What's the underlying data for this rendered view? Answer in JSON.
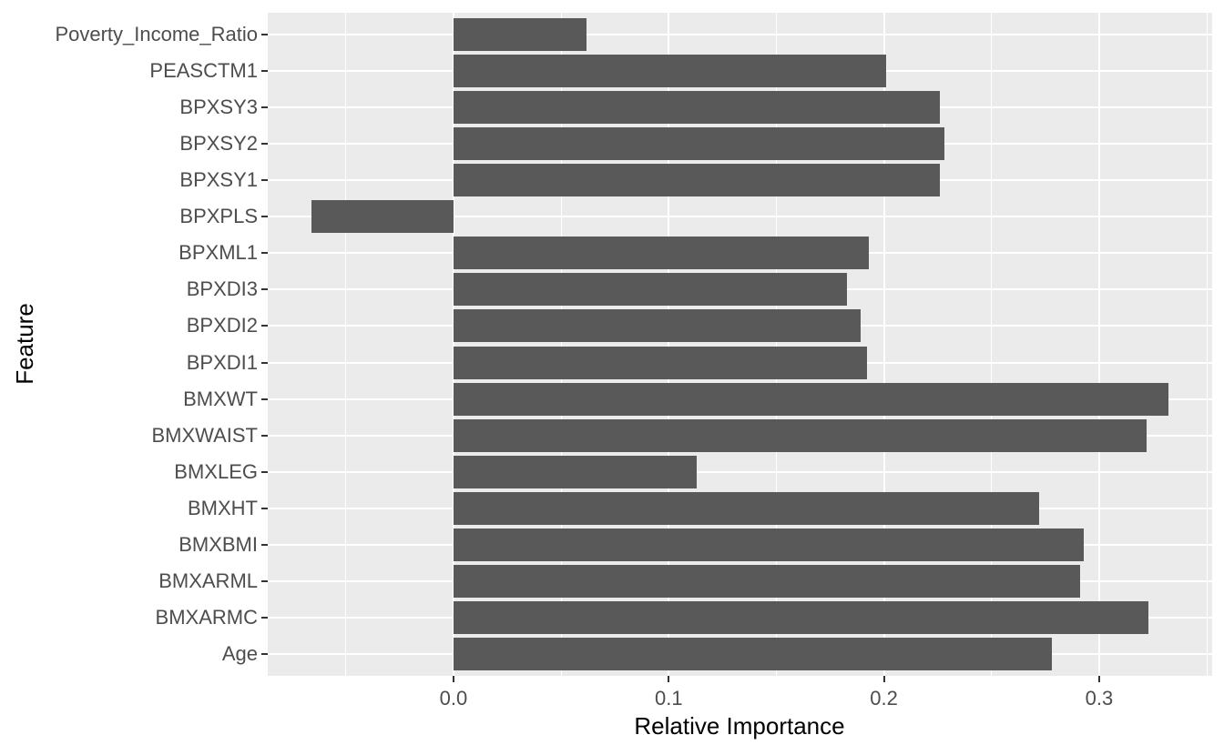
{
  "chart_data": {
    "type": "bar",
    "orientation": "horizontal",
    "title": "",
    "xlabel": "Relative Importance",
    "ylabel": "Feature",
    "categories": [
      "Poverty_Income_Ratio",
      "PEASCTM1",
      "BPXSY3",
      "BPXSY2",
      "BPXSY1",
      "BPXPLS",
      "BPXML1",
      "BPXDI3",
      "BPXDI2",
      "BPXDI1",
      "BMXWT",
      "BMXWAIST",
      "BMXLEG",
      "BMXHT",
      "BMXBMI",
      "BMXARML",
      "BMXARMC",
      "Age"
    ],
    "values": [
      0.062,
      0.201,
      0.226,
      0.228,
      0.226,
      -0.066,
      0.193,
      0.183,
      0.189,
      0.192,
      0.332,
      0.322,
      0.113,
      0.272,
      0.293,
      0.291,
      0.323,
      0.278
    ],
    "x_tick_labels": [
      "0.0",
      "0.1",
      "0.2",
      "0.3"
    ],
    "x_tick_values": [
      0.0,
      0.1,
      0.2,
      0.3
    ],
    "x_minor_values": [
      -0.05,
      0.05,
      0.15,
      0.25,
      0.35
    ],
    "xlim": [
      -0.0863,
      0.3525
    ],
    "grid": true,
    "legend": "none",
    "colors": {
      "bar": "#595959",
      "panel_background": "#EBEBEB",
      "grid_major": "#FFFFFF",
      "grid_minor": "#FFFFFF",
      "tick_label": "#4D4D4D",
      "axis_title": "#000000",
      "tick_mark": "#333333",
      "figure_background": "#FFFFFF"
    }
  }
}
